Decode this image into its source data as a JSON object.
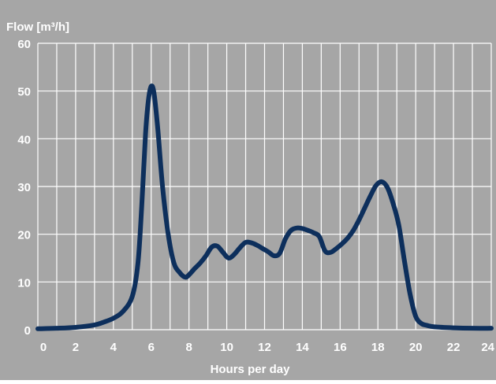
{
  "colors": {
    "background": "#a6a6a6",
    "plot_background": "#a6a6a6",
    "grid": "#ffffff",
    "series_line": "#0d2f5c",
    "text": "#ffffff"
  },
  "chart_data": {
    "type": "line",
    "ylabel": "Flow  [m³/h]",
    "xlabel": "Hours per day",
    "xlim": [
      0,
      24
    ],
    "ylim": [
      0,
      60
    ],
    "xticks": [
      0,
      2,
      4,
      6,
      8,
      10,
      12,
      14,
      16,
      18,
      20,
      22,
      24
    ],
    "xtick_labels": [
      "0",
      "2",
      "4",
      "6",
      "8",
      "10",
      "12",
      "14",
      "16",
      "18",
      "20",
      "22",
      "24"
    ],
    "yticks": [
      0,
      10,
      20,
      30,
      40,
      50,
      60
    ],
    "ytick_labels": [
      "0",
      "10",
      "20",
      "30",
      "40",
      "50",
      "60"
    ],
    "grid": true,
    "minor_x_step": 1,
    "series": [
      {
        "x": [
          0,
          1,
          2,
          3,
          3.5,
          4,
          4.5,
          5,
          5.3,
          5.5,
          5.7,
          5.85,
          6,
          6.15,
          6.35,
          6.6,
          6.9,
          7.2,
          7.5,
          7.8,
          8.0,
          8.3,
          8.6,
          8.9,
          9.2,
          9.5,
          9.8,
          10.1,
          10.4,
          10.7,
          11.0,
          11.3,
          11.6,
          11.9,
          12.2,
          12.5,
          12.8,
          13.1,
          13.4,
          13.7,
          14.0,
          14.3,
          14.6,
          14.9,
          15.2,
          15.5,
          15.8,
          16.1,
          16.4,
          16.7,
          17.0,
          17.3,
          17.6,
          17.9,
          18.2,
          18.5,
          18.8,
          19.1,
          19.4,
          19.7,
          20.0,
          20.3,
          20.6,
          21,
          22,
          23,
          24
        ],
        "y": [
          0.2,
          0.3,
          0.5,
          1.0,
          1.6,
          2.4,
          3.8,
          7.0,
          14,
          26,
          41,
          48,
          51,
          49.5,
          42,
          30,
          20,
          14,
          12,
          11,
          11.5,
          12.8,
          14,
          15.5,
          17.3,
          17.5,
          16.2,
          15,
          15.8,
          17.2,
          18.3,
          18.2,
          17.7,
          17,
          16.3,
          15.5,
          16,
          19,
          20.8,
          21.3,
          21.2,
          20.8,
          20.3,
          19.5,
          16.5,
          16.2,
          17,
          18,
          19.2,
          20.8,
          23,
          25.5,
          28,
          30.2,
          31,
          29.8,
          26.5,
          22,
          14.5,
          7.5,
          2.8,
          1.3,
          0.9,
          0.6,
          0.4,
          0.3,
          0.3
        ]
      }
    ]
  }
}
